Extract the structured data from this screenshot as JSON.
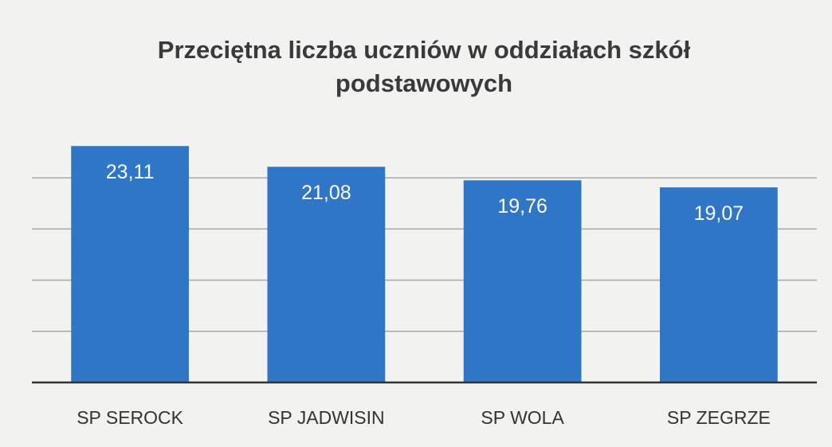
{
  "chart_data": {
    "type": "bar",
    "title": "Przeciętna liczba uczniów w oddziałach szkół podstawowych",
    "categories": [
      "SP SEROCK",
      "SP JADWISIN",
      "SP WOLA",
      "SP ZEGRZE"
    ],
    "values": [
      23.11,
      21.08,
      19.76,
      19.07
    ],
    "value_labels": [
      "23,11",
      "21,08",
      "19,76",
      "19,07"
    ],
    "color": "#2f77c6",
    "ylim": [
      0,
      25
    ],
    "yticks": [
      0,
      5,
      10,
      15,
      20
    ],
    "ytick_labels": false,
    "grid": true
  }
}
